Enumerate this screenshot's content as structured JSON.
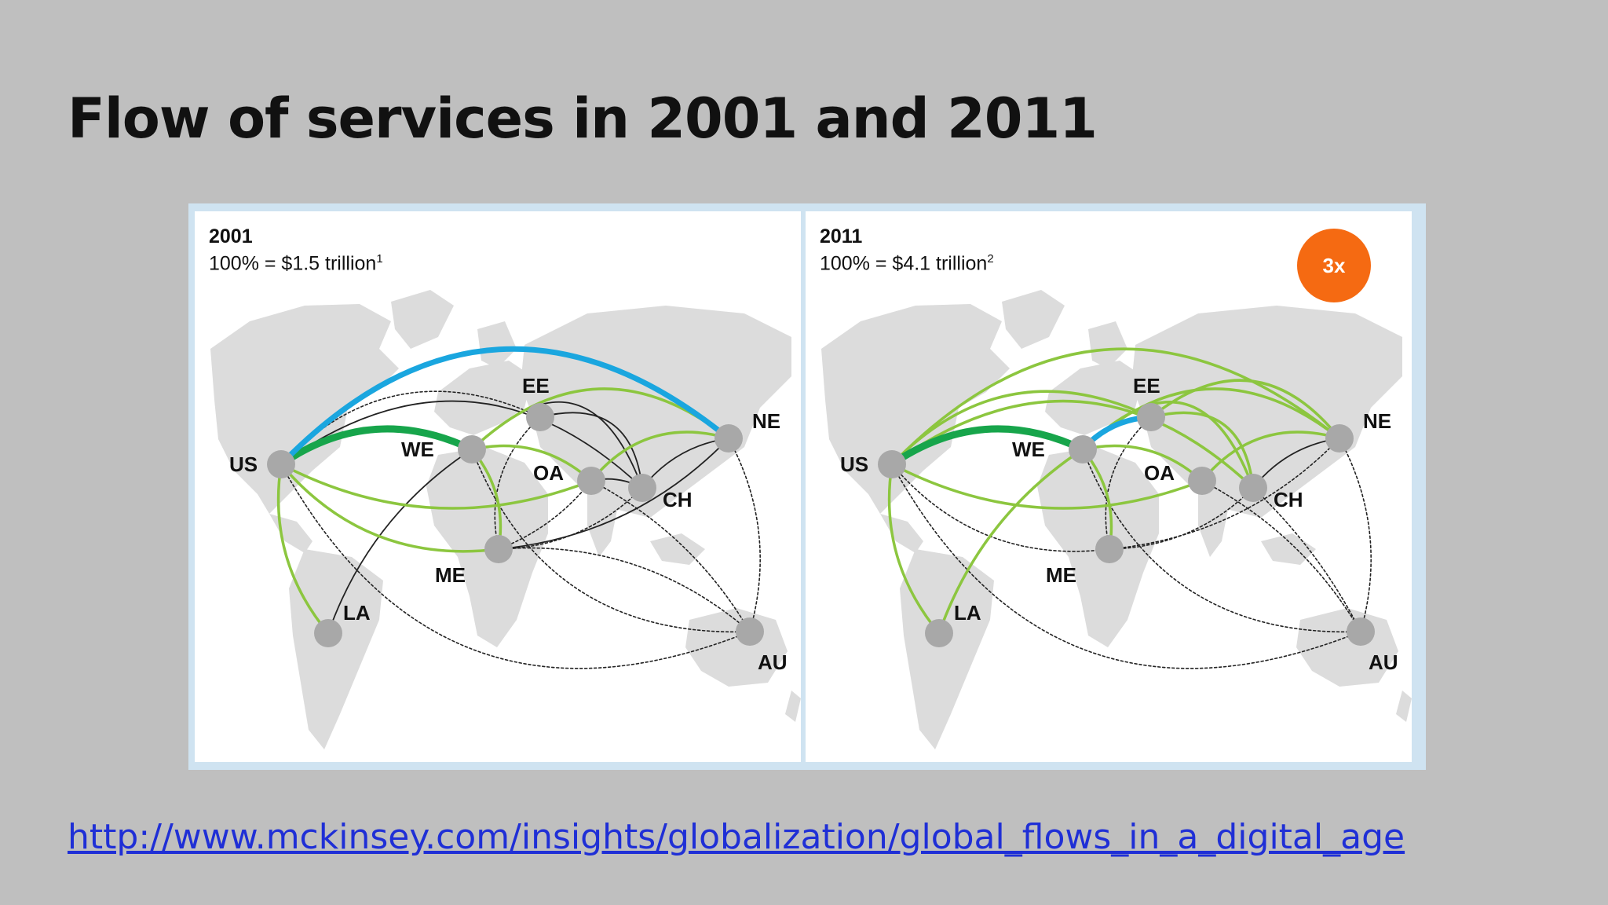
{
  "title": "Flow of services in 2001 and 2011",
  "source_url": "http://www.mckinsey.com/insights/globalization/global_flows_in_a_digital_age",
  "colors": {
    "background": "#bfbfbf",
    "map_land": "#dcdcdc",
    "node": "#a8a8a8",
    "flow_blue": "#1aa6df",
    "flow_dark_green": "#17a54b",
    "flow_light_green": "#8cc63f",
    "flow_black": "#222222",
    "badge": "#f56a12"
  },
  "panels": [
    {
      "id": "2001",
      "year": "2001",
      "total_prefix": "100% = $1.5 trillion",
      "total_note": "1",
      "badge": null
    },
    {
      "id": "2011",
      "year": "2011",
      "total_prefix": "100% = $4.1 trillion",
      "total_note": "2",
      "badge": "3x"
    }
  ],
  "regions": [
    {
      "code": "US"
    },
    {
      "code": "WE"
    },
    {
      "code": "EE"
    },
    {
      "code": "NE"
    },
    {
      "code": "OA"
    },
    {
      "code": "CH"
    },
    {
      "code": "ME"
    },
    {
      "code": "LA"
    },
    {
      "code": "AU"
    }
  ],
  "flows_2001": [
    {
      "from": "US",
      "to": "NE",
      "style": "blue"
    },
    {
      "from": "US",
      "to": "WE",
      "style": "dark-green"
    },
    {
      "from": "US",
      "to": "EE",
      "style": "dotted"
    },
    {
      "from": "US",
      "to": "CH",
      "style": "black"
    },
    {
      "from": "US",
      "to": "OA",
      "style": "light-green"
    },
    {
      "from": "US",
      "to": "ME",
      "style": "light-green"
    },
    {
      "from": "US",
      "to": "LA",
      "style": "light-green"
    },
    {
      "from": "US",
      "to": "AU",
      "style": "dotted"
    },
    {
      "from": "WE",
      "to": "NE",
      "style": "light-green"
    },
    {
      "from": "WE",
      "to": "CH",
      "style": "black"
    },
    {
      "from": "WE",
      "to": "OA",
      "style": "light-green"
    },
    {
      "from": "WE",
      "to": "ME",
      "style": "light-green"
    },
    {
      "from": "WE",
      "to": "LA",
      "style": "black"
    },
    {
      "from": "WE",
      "to": "AU",
      "style": "dotted"
    },
    {
      "from": "EE",
      "to": "CH",
      "style": "black"
    },
    {
      "from": "EE",
      "to": "ME",
      "style": "dotted"
    },
    {
      "from": "OA",
      "to": "NE",
      "style": "light-green"
    },
    {
      "from": "OA",
      "to": "CH",
      "style": "black"
    },
    {
      "from": "OA",
      "to": "AU",
      "style": "dotted"
    },
    {
      "from": "CH",
      "to": "NE",
      "style": "black"
    },
    {
      "from": "ME",
      "to": "NE",
      "style": "black"
    },
    {
      "from": "ME",
      "to": "CH",
      "style": "dotted"
    },
    {
      "from": "ME",
      "to": "OA",
      "style": "dotted"
    },
    {
      "from": "AU",
      "to": "NE",
      "style": "dotted"
    },
    {
      "from": "AU",
      "to": "ME",
      "style": "dotted"
    }
  ],
  "flows_2011": [
    {
      "from": "US",
      "to": "WE",
      "style": "dark-green"
    },
    {
      "from": "WE",
      "to": "EE",
      "style": "blue"
    },
    {
      "from": "US",
      "to": "NE",
      "style": "light-green"
    },
    {
      "from": "US",
      "to": "CH",
      "style": "light-green"
    },
    {
      "from": "US",
      "to": "EE",
      "style": "light-green"
    },
    {
      "from": "US",
      "to": "OA",
      "style": "light-green"
    },
    {
      "from": "US",
      "to": "ME",
      "style": "dotted"
    },
    {
      "from": "US",
      "to": "LA",
      "style": "light-green"
    },
    {
      "from": "US",
      "to": "AU",
      "style": "dotted"
    },
    {
      "from": "WE",
      "to": "NE",
      "style": "light-green"
    },
    {
      "from": "WE",
      "to": "CH",
      "style": "light-green"
    },
    {
      "from": "WE",
      "to": "OA",
      "style": "light-green"
    },
    {
      "from": "WE",
      "to": "ME",
      "style": "light-green"
    },
    {
      "from": "WE",
      "to": "LA",
      "style": "light-green"
    },
    {
      "from": "WE",
      "to": "AU",
      "style": "dotted"
    },
    {
      "from": "EE",
      "to": "NE",
      "style": "light-green"
    },
    {
      "from": "EE",
      "to": "CH",
      "style": "light-green"
    },
    {
      "from": "EE",
      "to": "ME",
      "style": "dotted"
    },
    {
      "from": "OA",
      "to": "NE",
      "style": "light-green"
    },
    {
      "from": "OA",
      "to": "AU",
      "style": "dotted"
    },
    {
      "from": "CH",
      "to": "NE",
      "style": "black"
    },
    {
      "from": "CH",
      "to": "AU",
      "style": "dotted"
    },
    {
      "from": "ME",
      "to": "NE",
      "style": "dotted"
    },
    {
      "from": "ME",
      "to": "CH",
      "style": "dotted"
    },
    {
      "from": "AU",
      "to": "NE",
      "style": "dotted"
    }
  ]
}
